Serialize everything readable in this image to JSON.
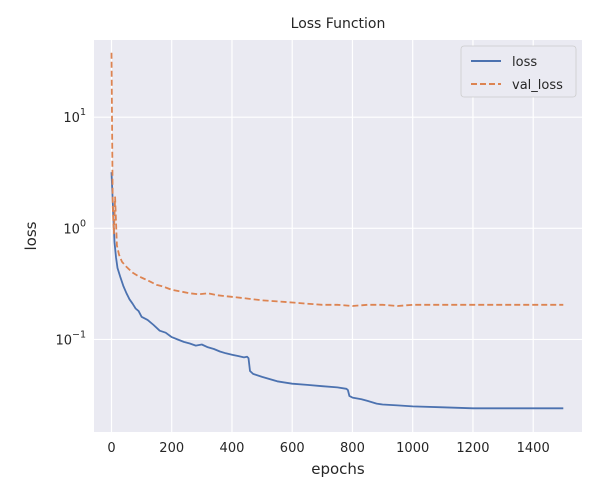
{
  "chart_data": {
    "type": "line",
    "title": "Loss Function",
    "xlabel": "epochs",
    "ylabel": "loss",
    "xlim": [
      -58,
      1562
    ],
    "ylim": [
      0.0147,
      49.5
    ],
    "yscale": "log",
    "grid": true,
    "legend_position": "top-right",
    "xticks": [
      {
        "value": 0,
        "label": "0"
      },
      {
        "value": 200,
        "label": "200"
      },
      {
        "value": 400,
        "label": "400"
      },
      {
        "value": 600,
        "label": "600"
      },
      {
        "value": 800,
        "label": "800"
      },
      {
        "value": 1000,
        "label": "1000"
      },
      {
        "value": 1200,
        "label": "1200"
      },
      {
        "value": 1400,
        "label": "1400"
      }
    ],
    "yticks": [
      {
        "value": 10,
        "base": "10",
        "exp": "1"
      },
      {
        "value": 1,
        "base": "10",
        "exp": "0"
      },
      {
        "value": 0.1,
        "base": "10",
        "exp": "−1"
      }
    ],
    "series": [
      {
        "name": "loss",
        "color": "#4c72b0",
        "style": "solid",
        "x": [
          0,
          5,
          10,
          15,
          20,
          30,
          40,
          50,
          60,
          70,
          80,
          90,
          100,
          120,
          140,
          160,
          180,
          200,
          220,
          240,
          260,
          280,
          300,
          320,
          340,
          360,
          380,
          400,
          420,
          440,
          450,
          455,
          460,
          470,
          500,
          550,
          600,
          650,
          700,
          750,
          780,
          785,
          790,
          800,
          830,
          850,
          880,
          900,
          950,
          1000,
          1100,
          1200,
          1300,
          1400,
          1500
        ],
        "y": [
          3.2,
          1.5,
          0.75,
          0.55,
          0.44,
          0.36,
          0.3,
          0.26,
          0.23,
          0.21,
          0.19,
          0.18,
          0.16,
          0.15,
          0.135,
          0.12,
          0.115,
          0.105,
          0.1,
          0.095,
          0.092,
          0.088,
          0.09,
          0.085,
          0.082,
          0.078,
          0.075,
          0.073,
          0.071,
          0.069,
          0.07,
          0.068,
          0.052,
          0.049,
          0.046,
          0.042,
          0.04,
          0.039,
          0.038,
          0.037,
          0.036,
          0.035,
          0.031,
          0.03,
          0.029,
          0.028,
          0.0265,
          0.026,
          0.0255,
          0.025,
          0.0245,
          0.024,
          0.024,
          0.024,
          0.024
        ]
      },
      {
        "name": "val_loss",
        "color": "#dd8452",
        "style": "dashed",
        "x": [
          0,
          4,
          8,
          12,
          18,
          25,
          35,
          50,
          70,
          90,
          110,
          130,
          150,
          170,
          200,
          230,
          260,
          290,
          320,
          350,
          380,
          410,
          440,
          470,
          500,
          550,
          600,
          650,
          700,
          750,
          800,
          850,
          900,
          950,
          1000,
          1100,
          1200,
          1300,
          1400,
          1500
        ],
        "y": [
          38,
          1.6,
          0.9,
          1.9,
          0.7,
          0.58,
          0.5,
          0.45,
          0.4,
          0.37,
          0.35,
          0.33,
          0.31,
          0.3,
          0.28,
          0.27,
          0.26,
          0.255,
          0.26,
          0.25,
          0.245,
          0.24,
          0.235,
          0.23,
          0.225,
          0.22,
          0.215,
          0.21,
          0.205,
          0.205,
          0.2,
          0.205,
          0.205,
          0.2,
          0.205,
          0.205,
          0.205,
          0.205,
          0.205,
          0.205
        ]
      }
    ]
  }
}
